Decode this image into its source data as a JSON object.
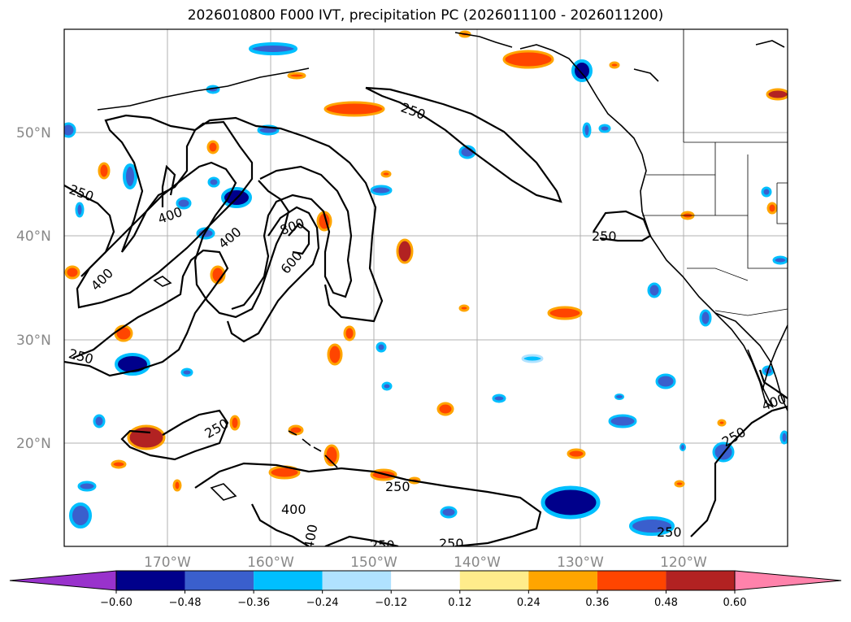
{
  "title": "2026010800 F000 IVT, precipitation PC (2026011100 - 2026011200)",
  "map": {
    "lat_labels": [
      "50°N",
      "40°N",
      "30°N",
      "20°N"
    ],
    "lon_labels": [
      "170°W",
      "160°W",
      "150°W",
      "140°W",
      "130°W",
      "120°W"
    ],
    "ivt_contour_labels": [
      "250",
      "250",
      "250",
      "250",
      "250",
      "250",
      "250",
      "250",
      "250",
      "250",
      "400",
      "400",
      "400",
      "400",
      "400",
      "400",
      "600",
      "800"
    ]
  },
  "colorbar": {
    "ticks": [
      "−0.60",
      "−0.48",
      "−0.36",
      "−0.24",
      "−0.12",
      "0.12",
      "0.24",
      "0.36",
      "0.48",
      "0.60"
    ],
    "colors": [
      "#9932CC",
      "#00008B",
      "#3A5FCD",
      "#00BFFF",
      "#B0E2FF",
      "#FFFFFF",
      "#FFEC8B",
      "#FFA500",
      "#FF4500",
      "#B22222",
      "#FF82AB"
    ]
  },
  "chart_data": {
    "type": "map",
    "title": "2026010800 F000 IVT, precipitation PC (2026011100 - 2026011200)",
    "projection": "lat-lon",
    "lon_range": [
      -180,
      -110
    ],
    "lat_range": [
      10,
      60
    ],
    "lat_ticks": [
      20,
      30,
      40,
      50
    ],
    "lon_ticks": [
      -170,
      -160,
      -150,
      -140,
      -130,
      -120
    ],
    "contour_field": "IVT",
    "contour_levels": [
      250,
      400,
      600,
      800
    ],
    "fill_field": "precipitation PC",
    "fill_levels": [
      -0.6,
      -0.48,
      -0.36,
      -0.24,
      -0.12,
      0.12,
      0.24,
      0.36,
      0.48,
      0.6
    ],
    "colorbar_extend": "both",
    "grid": true
  }
}
